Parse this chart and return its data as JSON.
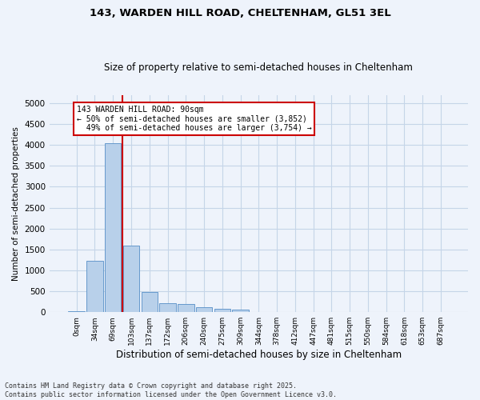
{
  "title1": "143, WARDEN HILL ROAD, CHELTENHAM, GL51 3EL",
  "title2": "Size of property relative to semi-detached houses in Cheltenham",
  "xlabel": "Distribution of semi-detached houses by size in Cheltenham",
  "ylabel": "Number of semi-detached properties",
  "categories": [
    "0sqm",
    "34sqm",
    "69sqm",
    "103sqm",
    "137sqm",
    "172sqm",
    "206sqm",
    "240sqm",
    "275sqm",
    "309sqm",
    "344sqm",
    "378sqm",
    "412sqm",
    "447sqm",
    "481sqm",
    "515sqm",
    "550sqm",
    "584sqm",
    "618sqm",
    "653sqm",
    "687sqm"
  ],
  "values": [
    30,
    1220,
    4050,
    1600,
    480,
    210,
    190,
    120,
    80,
    55,
    0,
    0,
    0,
    0,
    0,
    0,
    0,
    0,
    0,
    0,
    0
  ],
  "bar_color": "#b8d0ea",
  "bar_edge_color": "#6699cc",
  "vline_x": 2.5,
  "vline_color": "#cc0000",
  "annotation_line1": "143 WARDEN HILL ROAD: 90sqm",
  "annotation_line2": "← 50% of semi-detached houses are smaller (3,852)",
  "annotation_line3": "  49% of semi-detached houses are larger (3,754) →",
  "annotation_box_color": "#ffffff",
  "annotation_box_edge": "#cc0000",
  "ylim": [
    0,
    5200
  ],
  "yticks": [
    0,
    500,
    1000,
    1500,
    2000,
    2500,
    3000,
    3500,
    4000,
    4500,
    5000
  ],
  "footer": "Contains HM Land Registry data © Crown copyright and database right 2025.\nContains public sector information licensed under the Open Government Licence v3.0.",
  "bg_color": "#eef3fb",
  "grid_color": "#c5d5e8"
}
